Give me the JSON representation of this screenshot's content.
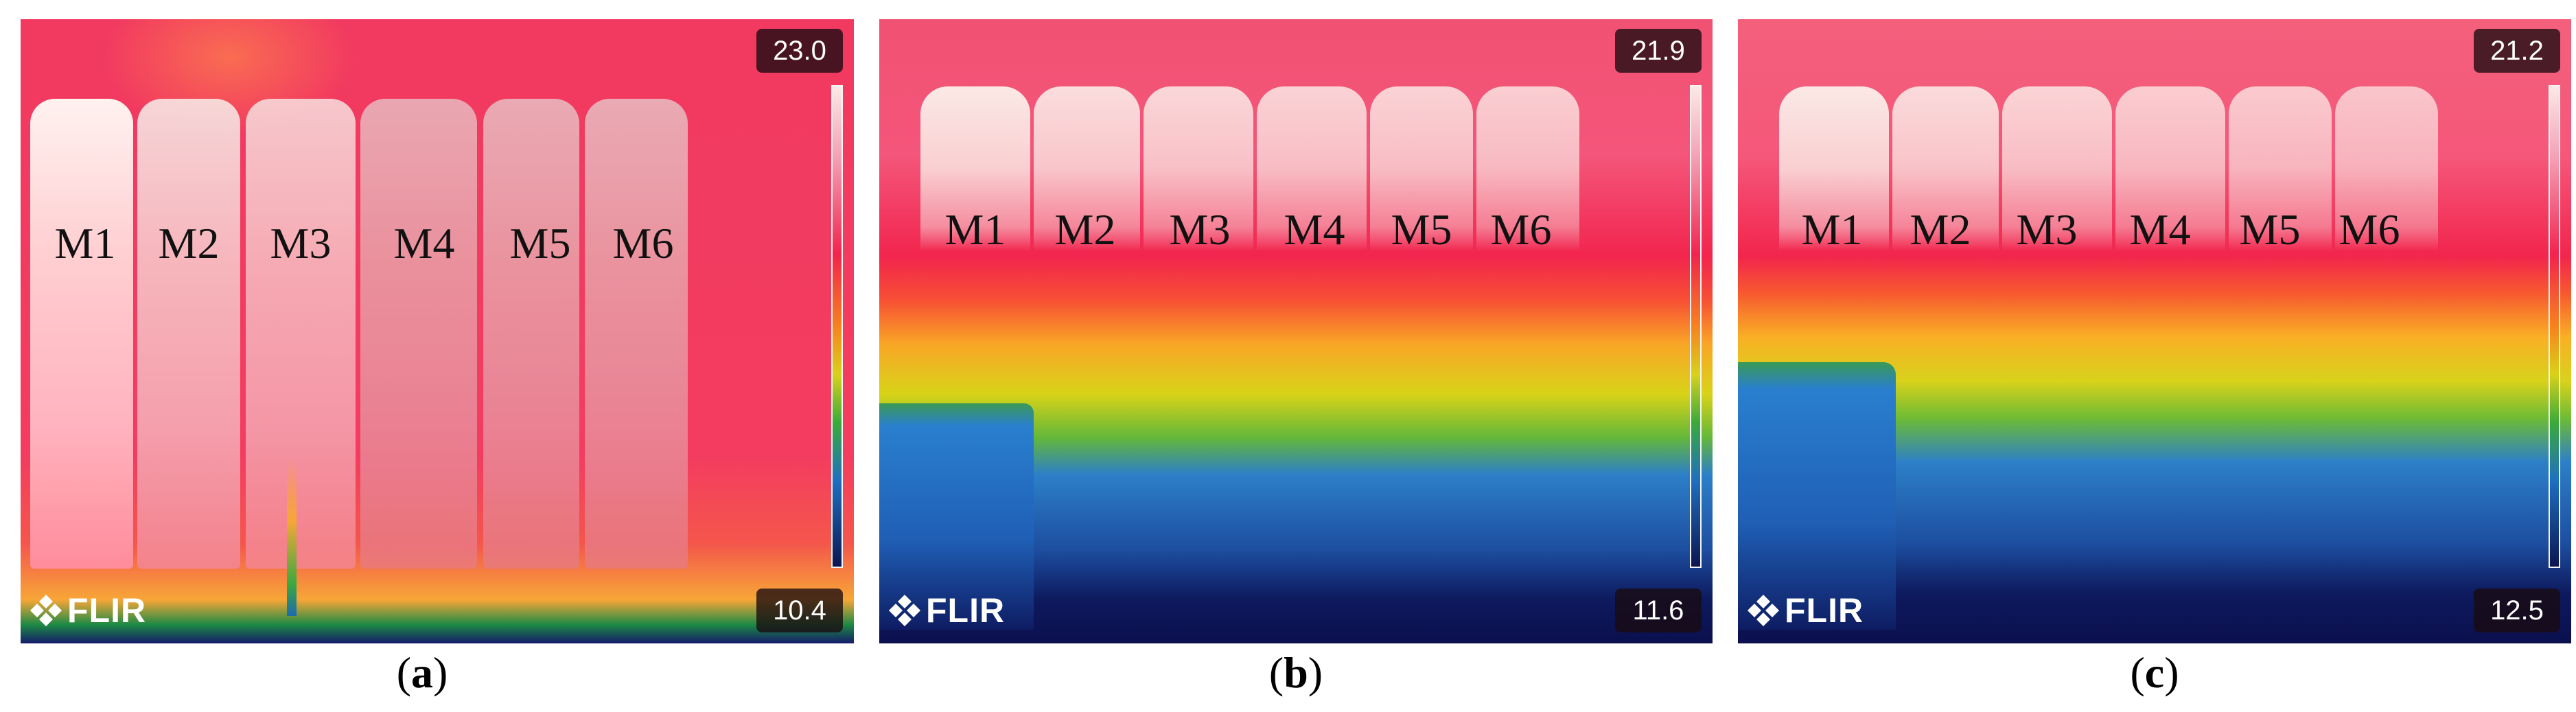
{
  "panels": [
    {
      "id": "a",
      "caption_letter": "a",
      "temp_max": "23.0",
      "temp_min": "10.4",
      "labels": [
        "M1",
        "M2",
        "M3",
        "M4",
        "M5",
        "M6"
      ],
      "logo_text": "FLIR"
    },
    {
      "id": "b",
      "caption_letter": "b",
      "temp_max": "21.9",
      "temp_min": "11.6",
      "labels": [
        "M1",
        "M2",
        "M3",
        "M4",
        "M5",
        "M6"
      ],
      "logo_text": "FLIR"
    },
    {
      "id": "c",
      "caption_letter": "c",
      "temp_max": "21.2",
      "temp_min": "12.5",
      "labels": [
        "M1",
        "M2",
        "M3",
        "M4",
        "M5",
        "M6"
      ],
      "logo_text": "FLIR"
    }
  ],
  "palette": {
    "hot": "#f2234e",
    "warm": "#f7821e",
    "mid": "#d9d21a",
    "cool": "#3aaa3a",
    "cold": "#1f6fc0",
    "coldest": "#0c1551",
    "white_hot": "#fbe9e6"
  },
  "icons": [
    "flir-logo-icon"
  ]
}
